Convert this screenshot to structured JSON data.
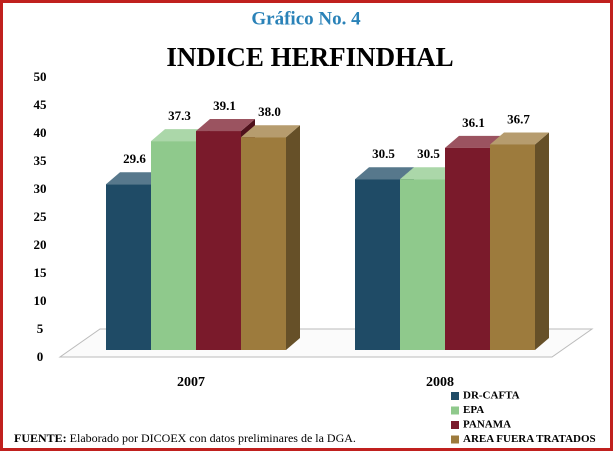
{
  "chart_data": {
    "type": "bar3d",
    "title": "Gráfico No. 4",
    "subtitle": "INDICE HERFINDHAL",
    "categories": [
      "2007",
      "2008"
    ],
    "series": [
      {
        "name": "DR-CAFTA",
        "color": "#1f4b66",
        "values": [
          29.6,
          30.5
        ]
      },
      {
        "name": "EPA",
        "color": "#8fc98c",
        "values": [
          37.3,
          30.5
        ]
      },
      {
        "name": "PANAMA",
        "color": "#7a1a2b",
        "values": [
          39.1,
          36.1
        ]
      },
      {
        "name": "AREA FUERA TRATADOS",
        "color": "#9d7b3d",
        "values": [
          38.0,
          36.7
        ],
        "value_labels": [
          "38.0",
          "36.7"
        ]
      }
    ],
    "ylim": [
      0,
      50
    ],
    "yticks": [
      0,
      5,
      10,
      15,
      20,
      25,
      30,
      35,
      40,
      45,
      50
    ],
    "grid": false,
    "legend": "bottom-right",
    "source_label": "FUENTE:",
    "source_text": "Elaborado por DICOEX con datos preliminares de la DGA."
  }
}
